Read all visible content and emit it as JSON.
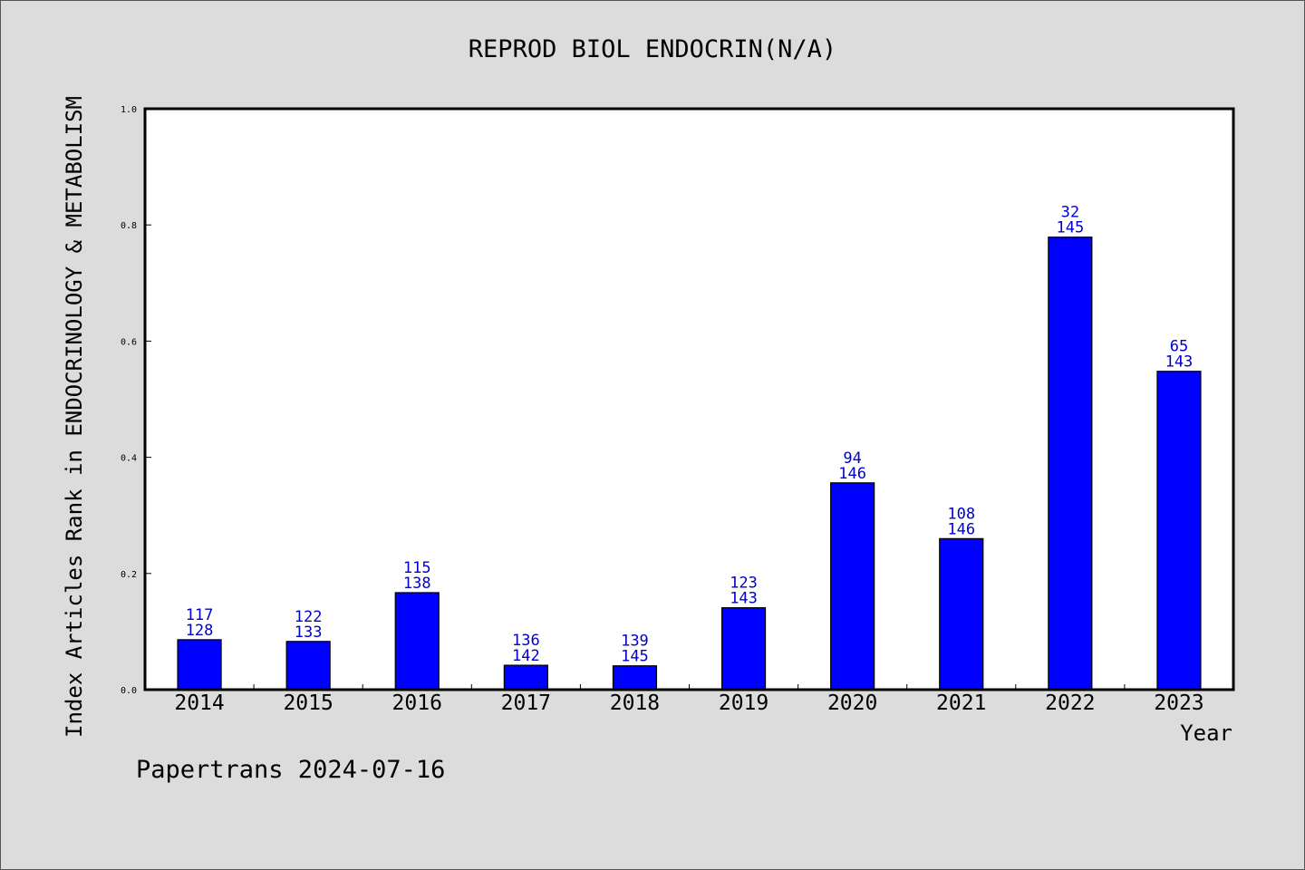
{
  "chart_data": {
    "type": "bar",
    "title": "REPROD BIOL ENDOCRIN(N/A)",
    "xlabel": "Year",
    "ylabel": "Index Articles Rank in ENDOCRINOLOGY & METABOLISM",
    "categories": [
      "2014",
      "2015",
      "2016",
      "2017",
      "2018",
      "2019",
      "2020",
      "2021",
      "2022",
      "2023"
    ],
    "values": [
      0.086,
      0.083,
      0.167,
      0.042,
      0.041,
      0.141,
      0.356,
      0.26,
      0.779,
      0.548
    ],
    "rank": [
      117,
      122,
      115,
      136,
      139,
      123,
      94,
      108,
      32,
      65
    ],
    "total": [
      128,
      133,
      138,
      142,
      145,
      143,
      146,
      146,
      145,
      143
    ],
    "ylim": [
      0,
      1.0
    ],
    "yticks": [
      "0.0",
      "0.2",
      "0.4",
      "0.6",
      "0.8",
      "1.0"
    ],
    "grid": false,
    "bar_color": "#0000ff",
    "label_color": "#0000cc"
  },
  "footer": {
    "note": "Papertrans 2024-07-16"
  }
}
